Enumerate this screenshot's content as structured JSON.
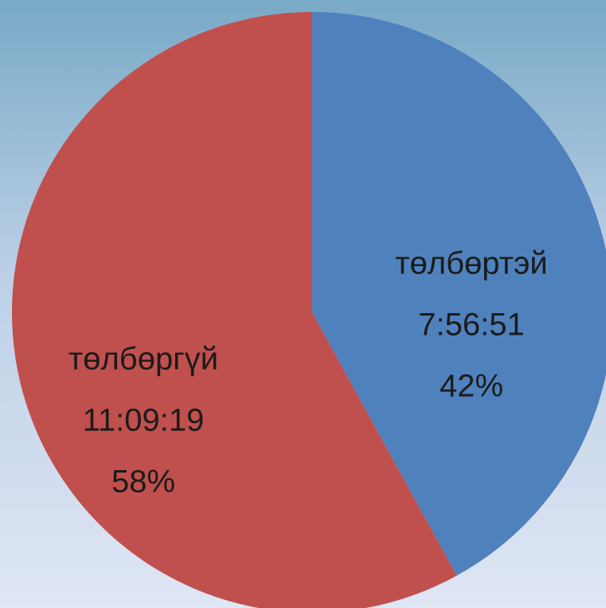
{
  "chart_data": {
    "type": "pie",
    "categories": [
      "төлбөртэй",
      "төлбөргүй"
    ],
    "durations": [
      "7:56:51",
      "11:09:19"
    ],
    "values": [
      42,
      58
    ],
    "value_labels": [
      "42%",
      "58%"
    ],
    "colors": [
      "#4f81bd",
      "#c0504d"
    ]
  }
}
